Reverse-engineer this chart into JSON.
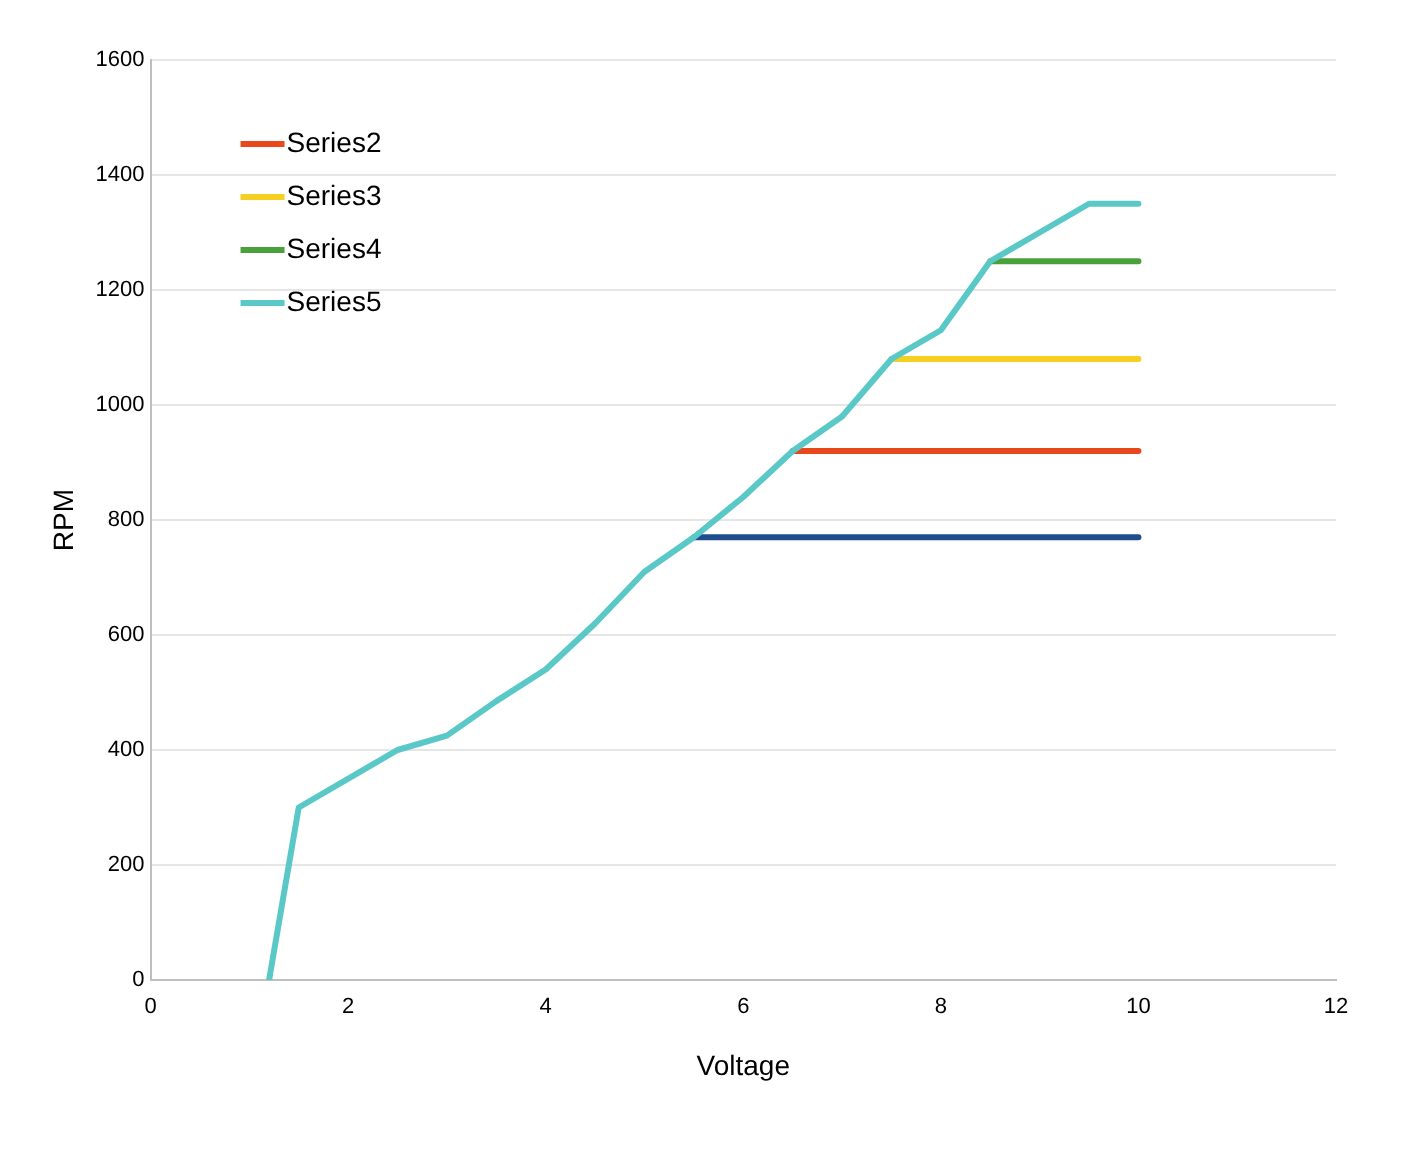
{
  "chart_data": {
    "type": "line",
    "xlabel": "Voltage",
    "ylabel": "RPM",
    "xlim": [
      0,
      12
    ],
    "xticks": [
      0,
      2,
      4,
      6,
      8,
      10,
      12
    ],
    "ylim": [
      0,
      1600
    ],
    "yticks": [
      0,
      200,
      400,
      600,
      800,
      1000,
      1200,
      1400,
      1600
    ],
    "grid": "y",
    "legend": "top left",
    "marker": "none",
    "line_style": "solid",
    "series": [
      {
        "color": "#1f4e8c",
        "x": [
          5.5,
          10
        ],
        "values": [
          770,
          770
        ]
      },
      {
        "name": "Series2",
        "color": "#e8481c",
        "x": [
          6.5,
          10
        ],
        "values": [
          920,
          920
        ]
      },
      {
        "name": "Series3",
        "color": "#f5d020",
        "x": [
          7.5,
          10
        ],
        "values": [
          1080,
          1080
        ]
      },
      {
        "name": "Series4",
        "color": "#4aa03a",
        "x": [
          8.5,
          10
        ],
        "values": [
          1250,
          1250
        ]
      },
      {
        "name": "Series5",
        "color": "#5bc8c8",
        "x": [
          1.2,
          1.5,
          2.5,
          3,
          3.5,
          4,
          4.5,
          5,
          5.5,
          6,
          6.5,
          7,
          7.5,
          8,
          8.5,
          9,
          9.5,
          10
        ],
        "values": [
          0,
          300,
          400,
          425,
          485,
          540,
          620,
          710,
          770,
          840,
          920,
          980,
          1080,
          1130,
          1250,
          1300,
          1350,
          1350
        ]
      }
    ]
  }
}
